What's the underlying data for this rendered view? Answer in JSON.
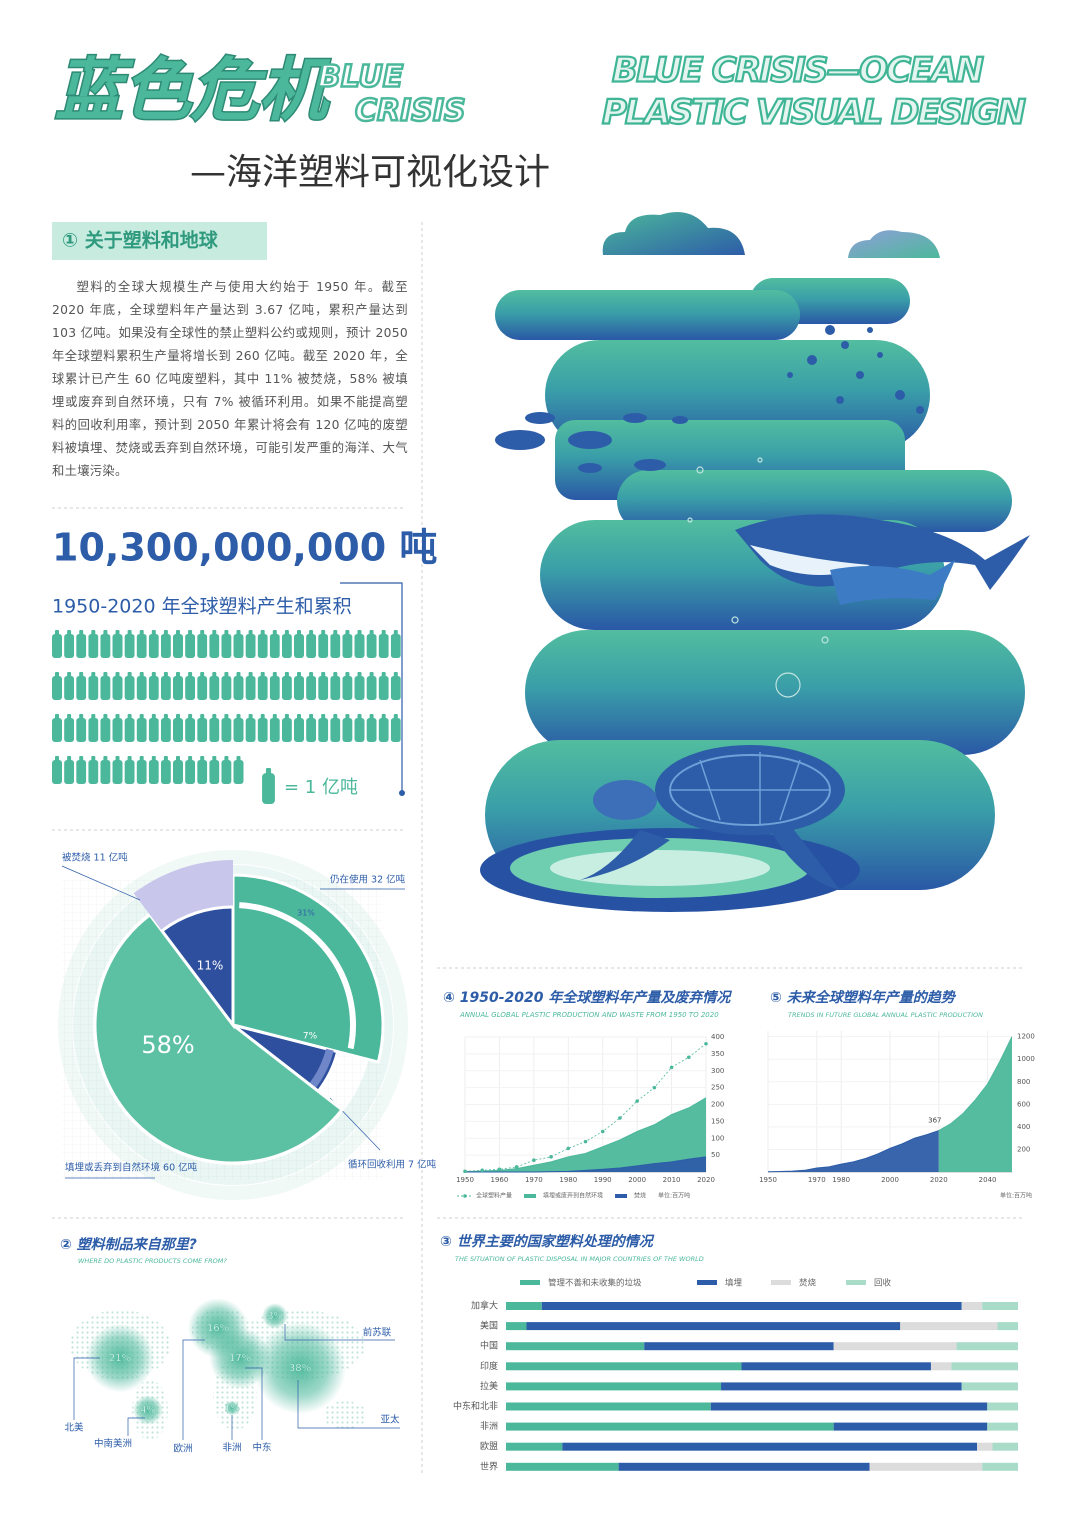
{
  "header": {
    "title_cn": "蓝色危机",
    "title_en_1": "BLUE",
    "title_en_2": "CRISIS",
    "subtitle": "—海洋塑料可视化设计",
    "title_right_1": "BLUE CRISIS—OCEAN",
    "title_right_2": "PLASTIC VISUAL DESIGN"
  },
  "intro": {
    "heading": "① 关于塑料和地球",
    "text": "塑料的全球大规模生产与使用大约始于 1950 年。截至 2020 年底，全球塑料年产量达到 3.67 亿吨，累积产量达到 103 亿吨。如果没有全球性的禁止塑料公约或规则，预计 2050 年全球塑料累积生产量将增长到 260 亿吨。截至 2020 年，全球累计已产生 60 亿吨废塑料，其中 11% 被焚烧，58% 被填埋或废弃到自然环境，只有 7% 被循环利用。如果不能提高塑料的回收利用率，预计到 2050 年累计将会有 120 亿吨的废塑料被填埋、焚烧或丢弃到自然环境，可能引发严重的海洋、大气和土壤污染。"
  },
  "chart_data": [
    {
      "type": "pictogram",
      "title": "10,300,000,000 吨",
      "subtitle": "1950-2020 年全球塑料产生和累积",
      "count": 103,
      "legend": "= 1 亿吨",
      "color": "#4cb89b"
    },
    {
      "type": "pie",
      "categories": [
        "仍在使用 32 亿吨",
        "循环回收利用 7 亿吨",
        "填埋或丢弃到自然环境 60 亿吨",
        "被焚烧 11 亿吨"
      ],
      "values": [
        31,
        7,
        58,
        11
      ],
      "value_labels": [
        "31%",
        "7%",
        "58%",
        "11%"
      ],
      "colors": [
        "#4cb89b",
        "#2d4f9e",
        "#5cc0a3",
        "#2d4f9e"
      ]
    },
    {
      "type": "area",
      "title": "④ 1950-2020 年全球塑料年产量及废弃情况",
      "subtitle": "ANNUAL GLOBAL PLASTIC PRODUCTION AND WASTE FROM 1950 TO 2020",
      "x": [
        1950,
        1955,
        1960,
        1965,
        1970,
        1975,
        1980,
        1985,
        1990,
        1995,
        2000,
        2005,
        2010,
        2015,
        2020
      ],
      "series": [
        {
          "name": "全球塑料产量",
          "color": "#4cb89b",
          "mark": "line",
          "values": [
            2,
            5,
            8,
            15,
            35,
            45,
            70,
            90,
            120,
            160,
            210,
            250,
            310,
            340,
            380
          ]
        },
        {
          "name": "填埋或废弃到自然环境",
          "color": "#4cb89b",
          "mark": "area",
          "values": [
            1,
            3,
            5,
            10,
            20,
            30,
            45,
            55,
            75,
            95,
            120,
            140,
            170,
            190,
            220
          ]
        },
        {
          "name": "焚烧",
          "color": "#2d5da8",
          "mark": "area",
          "values": [
            0,
            0,
            0,
            0,
            0,
            1,
            2,
            5,
            8,
            12,
            18,
            25,
            30,
            38,
            45
          ]
        }
      ],
      "xlim": [
        1950,
        2020
      ],
      "ylim": [
        0,
        400
      ],
      "xticks": [
        1950,
        1960,
        1970,
        1980,
        1990,
        2000,
        2010,
        2020
      ],
      "yticks": [
        50,
        100,
        150,
        200,
        250,
        300,
        350,
        400
      ],
      "grid": true,
      "unit": "单位:百万吨"
    },
    {
      "type": "area",
      "title": "⑤ 未来全球塑料年产量的趋势",
      "subtitle": "TRENDS IN FUTURE GLOBAL ANNUAL PLASTIC PRODUCTION",
      "x": [
        1950,
        1955,
        1960,
        1965,
        1970,
        1975,
        1980,
        1985,
        1990,
        1995,
        2000,
        2005,
        2010,
        2015,
        2020,
        2025,
        2030,
        2035,
        2040,
        2045,
        2050
      ],
      "series": [
        {
          "color": "#2d5da8",
          "mark": "area",
          "label_last": true,
          "values": [
            2,
            4,
            8,
            15,
            35,
            45,
            70,
            90,
            120,
            160,
            210,
            250,
            300,
            330,
            367,
            null,
            null,
            null,
            null,
            null,
            null
          ]
        },
        {
          "color": "#4cb89b",
          "mark": "area",
          "values": [
            null,
            null,
            null,
            null,
            null,
            null,
            null,
            null,
            null,
            null,
            null,
            null,
            null,
            null,
            367,
            430,
            520,
            640,
            780,
            980,
            1200
          ]
        }
      ],
      "xlim": [
        1950,
        2050
      ],
      "ylim": [
        0,
        1250
      ],
      "xticks": [
        1950,
        1970,
        1980,
        2000,
        2020,
        2040
      ],
      "yticks": [
        200,
        400,
        600,
        800,
        1000,
        1200
      ],
      "grid": true,
      "unit": "单位:百万吨"
    },
    {
      "type": "map",
      "title": "② 塑料制品来自那里?",
      "subtitle": "WHERE DO PLASTIC PRODUCTS COME FROM?",
      "categories": [
        "北美",
        "中南美洲",
        "欧洲",
        "非洲",
        "中东",
        "前苏联",
        "亚太"
      ],
      "values": [
        21,
        4,
        16,
        1,
        17,
        3,
        38
      ],
      "value_labels": [
        "21%",
        "4%",
        "16%",
        "1%",
        "17%",
        "3%",
        "38%"
      ],
      "color": "#4cb89b"
    },
    {
      "type": "stacked_barh",
      "title": "③ 世界主要的国家塑料处理的情况",
      "subtitle": "THE SITUATION OF PLASTIC DISPOSAL IN MAJOR COUNTRIES OF THE WORLD",
      "categories": [
        "加拿大",
        "美国",
        "中国",
        "印度",
        "拉美",
        "中东和北非",
        "非洲",
        "欧盟",
        "世界"
      ],
      "series": [
        {
          "name": "管理不善和未收集的垃圾",
          "color": "#4cb89b",
          "values": [
            7,
            4,
            27,
            46,
            42,
            40,
            64,
            11,
            22
          ]
        },
        {
          "name": "填埋",
          "color": "#2d5da8",
          "values": [
            82,
            73,
            37,
            37,
            47,
            54,
            30,
            81,
            49
          ]
        },
        {
          "name": "焚烧",
          "color": "#dcdcdc",
          "values": [
            4,
            19,
            24,
            4,
            0,
            0,
            0,
            3,
            22
          ]
        },
        {
          "name": "回收",
          "color": "#a8dcc9",
          "values": [
            7,
            4,
            12,
            13,
            11,
            6,
            6,
            5,
            7
          ]
        }
      ],
      "xlim": [
        0,
        100
      ]
    }
  ]
}
